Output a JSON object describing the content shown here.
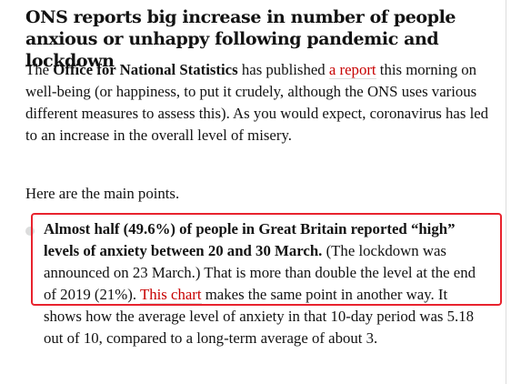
{
  "headline": "ONS reports big increase in number of people anxious or unhappy following pandemic and lockdown",
  "intro": {
    "lead": "The ",
    "org": "Office for National Statistics",
    "mid": " has published ",
    "link_text": "a report",
    "rest": " this morning on well-being (or happiness, to put it crudely, although the ONS uses various different measures to assess this). As you would expect, coronavirus has led to an increase in the overall level of misery."
  },
  "main_points": "Here are the main points.",
  "bullet": {
    "bold": "Almost half (49.6%) of people in Great Britain reported “high” levels of anxiety between 20 and 30 March.",
    "text_pre": " (The lockdown was announced on 23 March.) That is more than double the level at the end of 2019 (21%). ",
    "link_text": "This chart",
    "text_post": " makes the same point in another way. It shows how the average level of anxiety in that 10-day period was 5.18 out of 10, compared to a long-term average of about 3."
  },
  "colors": {
    "link": "#c70000",
    "highlight": "#e8232e",
    "bullet": "#dcdcdc"
  }
}
